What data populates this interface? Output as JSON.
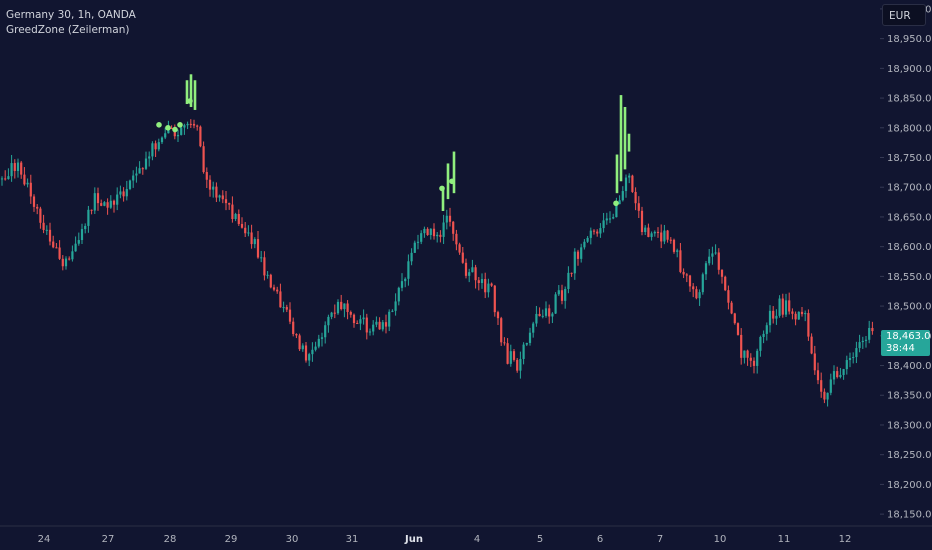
{
  "header": {
    "symbol": "Germany 30, 1h, OANDA",
    "indicator": "GreedZone (Zeilerman)"
  },
  "currency_button": "EUR",
  "last_price": {
    "price": "18,463.0",
    "countdown": "38:44"
  },
  "colors": {
    "background": "#111530",
    "up": "#26a69a",
    "down": "#ef5350",
    "signal": "#90ee7e",
    "price_tag": "#26a69a"
  },
  "chart_data": {
    "type": "candlestick",
    "y_axis": {
      "ylim": [
        18130,
        19015
      ],
      "ticks": [
        18150,
        18200,
        18250,
        18300,
        18350,
        18400,
        18450,
        18500,
        18550,
        18600,
        18650,
        18700,
        18750,
        18800,
        18850,
        18900,
        18950,
        19000
      ],
      "tick_labels": [
        "18,150.0",
        "18,200.0",
        "18,250.0",
        "18,300.0",
        "18,350.0",
        "18,400.0",
        "18,450.0",
        "18,500.0",
        "18,550.0",
        "18,600.0",
        "18,650.0",
        "18,700.0",
        "18,750.0",
        "18,800.0",
        "18,850.0",
        "18,900.0",
        "18,950.0",
        "19,000.0"
      ]
    },
    "x_axis": {
      "tick_labels": [
        "24",
        "27",
        "28",
        "29",
        "30",
        "31",
        "Jun",
        "4",
        "5",
        "6",
        "7",
        "10",
        "11",
        "12"
      ],
      "bold_labels": [
        "Jun"
      ]
    },
    "price_path": [
      [
        0,
        18710
      ],
      [
        18,
        18745
      ],
      [
        40,
        18640
      ],
      [
        55,
        18590
      ],
      [
        66,
        18570
      ],
      [
        78,
        18620
      ],
      [
        95,
        18680
      ],
      [
        112,
        18670
      ],
      [
        130,
        18700
      ],
      [
        148,
        18755
      ],
      [
        165,
        18795
      ],
      [
        182,
        18790
      ],
      [
        196,
        18820
      ],
      [
        205,
        18720
      ],
      [
        222,
        18670
      ],
      [
        240,
        18650
      ],
      [
        258,
        18590
      ],
      [
        270,
        18540
      ],
      [
        288,
        18490
      ],
      [
        300,
        18430
      ],
      [
        310,
        18410
      ],
      [
        325,
        18470
      ],
      [
        340,
        18500
      ],
      [
        355,
        18470
      ],
      [
        372,
        18465
      ],
      [
        390,
        18480
      ],
      [
        408,
        18560
      ],
      [
        422,
        18640
      ],
      [
        436,
        18620
      ],
      [
        450,
        18650
      ],
      [
        462,
        18560
      ],
      [
        478,
        18550
      ],
      [
        492,
        18520
      ],
      [
        505,
        18420
      ],
      [
        518,
        18400
      ],
      [
        532,
        18470
      ],
      [
        548,
        18490
      ],
      [
        562,
        18520
      ],
      [
        575,
        18580
      ],
      [
        590,
        18620
      ],
      [
        605,
        18650
      ],
      [
        618,
        18660
      ],
      [
        628,
        18720
      ],
      [
        640,
        18640
      ],
      [
        655,
        18620
      ],
      [
        668,
        18620
      ],
      [
        680,
        18570
      ],
      [
        695,
        18510
      ],
      [
        705,
        18560
      ],
      [
        715,
        18590
      ],
      [
        728,
        18500
      ],
      [
        742,
        18420
      ],
      [
        752,
        18400
      ],
      [
        765,
        18470
      ],
      [
        780,
        18500
      ],
      [
        795,
        18490
      ],
      [
        805,
        18480
      ],
      [
        815,
        18380
      ],
      [
        825,
        18350
      ],
      [
        838,
        18390
      ],
      [
        852,
        18420
      ],
      [
        862,
        18440
      ],
      [
        874,
        18463
      ]
    ],
    "signal_bars": [
      {
        "x": 187,
        "low": 18840,
        "high": 18880
      },
      {
        "x": 191,
        "low": 18835,
        "high": 18890
      },
      {
        "x": 195,
        "low": 18830,
        "high": 18880
      },
      {
        "x": 443,
        "low": 18660,
        "high": 18700
      },
      {
        "x": 448,
        "low": 18680,
        "high": 18740
      },
      {
        "x": 454,
        "low": 18690,
        "high": 18760
      },
      {
        "x": 617,
        "low": 18690,
        "high": 18755
      },
      {
        "x": 621,
        "low": 18710,
        "high": 18855
      },
      {
        "x": 625,
        "low": 18730,
        "high": 18835
      },
      {
        "x": 629,
        "low": 18760,
        "high": 18790
      }
    ],
    "signal_dots": [
      {
        "x": 159,
        "y": 18805
      },
      {
        "x": 168,
        "y": 18800
      },
      {
        "x": 175,
        "y": 18797
      },
      {
        "x": 180,
        "y": 18805
      },
      {
        "x": 190,
        "y": 18845
      },
      {
        "x": 442,
        "y": 18698
      },
      {
        "x": 452,
        "y": 18710
      },
      {
        "x": 616,
        "y": 18673
      }
    ]
  }
}
